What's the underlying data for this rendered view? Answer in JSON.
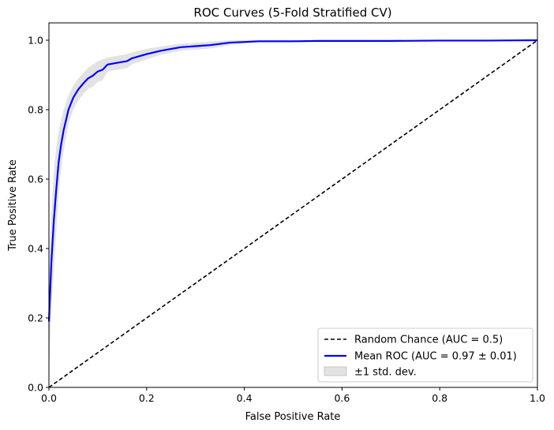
{
  "chart_data": {
    "type": "line",
    "title": "ROC Curves (5-Fold Stratified CV)",
    "xlabel": "False Positive Rate",
    "ylabel": "True Positive Rate",
    "xlim": [
      0.0,
      1.0
    ],
    "ylim": [
      0.0,
      1.05
    ],
    "xticks": [
      "0.0",
      "0.2",
      "0.4",
      "0.6",
      "0.8",
      "1.0"
    ],
    "yticks": [
      "0.0",
      "0.2",
      "0.4",
      "0.6",
      "0.8",
      "1.0"
    ],
    "grid": false,
    "legend_position": "lower-right",
    "series": [
      {
        "name": "Random Chance (AUC = 0.5)",
        "style": "dashed",
        "color": "#000000",
        "x": [
          0.0,
          1.0
        ],
        "y": [
          0.0,
          1.0
        ]
      },
      {
        "name": "Mean ROC (AUC = 0.97 ± 0.01)",
        "style": "solid",
        "color": "#0000ff",
        "x": [
          0.0,
          0.005,
          0.01,
          0.015,
          0.02,
          0.025,
          0.03,
          0.035,
          0.04,
          0.05,
          0.06,
          0.07,
          0.08,
          0.09,
          0.1,
          0.11,
          0.12,
          0.14,
          0.16,
          0.17,
          0.2,
          0.23,
          0.27,
          0.3,
          0.33,
          0.37,
          0.4,
          0.43,
          0.5,
          0.55,
          0.6,
          0.7,
          0.8,
          0.9,
          1.0
        ],
        "y": [
          0.19,
          0.36,
          0.48,
          0.57,
          0.65,
          0.7,
          0.74,
          0.77,
          0.8,
          0.835,
          0.858,
          0.875,
          0.89,
          0.898,
          0.91,
          0.915,
          0.93,
          0.935,
          0.94,
          0.948,
          0.96,
          0.97,
          0.98,
          0.983,
          0.986,
          0.993,
          0.995,
          0.997,
          0.997,
          0.998,
          0.998,
          0.998,
          0.999,
          0.999,
          1.0
        ]
      },
      {
        "name": "±1 std. dev.",
        "style": "band",
        "color": "#bfbfbf",
        "x": [
          0.0,
          0.005,
          0.01,
          0.015,
          0.02,
          0.025,
          0.03,
          0.035,
          0.04,
          0.05,
          0.06,
          0.07,
          0.08,
          0.09,
          0.1,
          0.11,
          0.12,
          0.14,
          0.16,
          0.17,
          0.2,
          0.23,
          0.27,
          0.3,
          0.33,
          0.37,
          0.4,
          0.43,
          0.5,
          0.55,
          0.6,
          0.7,
          0.8,
          0.9,
          1.0
        ],
        "upper": [
          0.34,
          0.5,
          0.62,
          0.69,
          0.74,
          0.77,
          0.8,
          0.82,
          0.84,
          0.87,
          0.89,
          0.905,
          0.92,
          0.93,
          0.94,
          0.945,
          0.95,
          0.955,
          0.96,
          0.965,
          0.975,
          0.982,
          0.99,
          0.993,
          0.996,
          1.0,
          1.0,
          1.0,
          1.0,
          1.0,
          1.0,
          1.0,
          1.0,
          1.0,
          1.0
        ],
        "lower": [
          0.04,
          0.22,
          0.34,
          0.45,
          0.56,
          0.63,
          0.68,
          0.72,
          0.76,
          0.8,
          0.826,
          0.845,
          0.86,
          0.866,
          0.88,
          0.885,
          0.91,
          0.915,
          0.92,
          0.931,
          0.945,
          0.958,
          0.97,
          0.973,
          0.976,
          0.986,
          0.99,
          0.994,
          0.994,
          0.996,
          0.996,
          0.996,
          0.998,
          0.998,
          1.0
        ]
      }
    ]
  }
}
